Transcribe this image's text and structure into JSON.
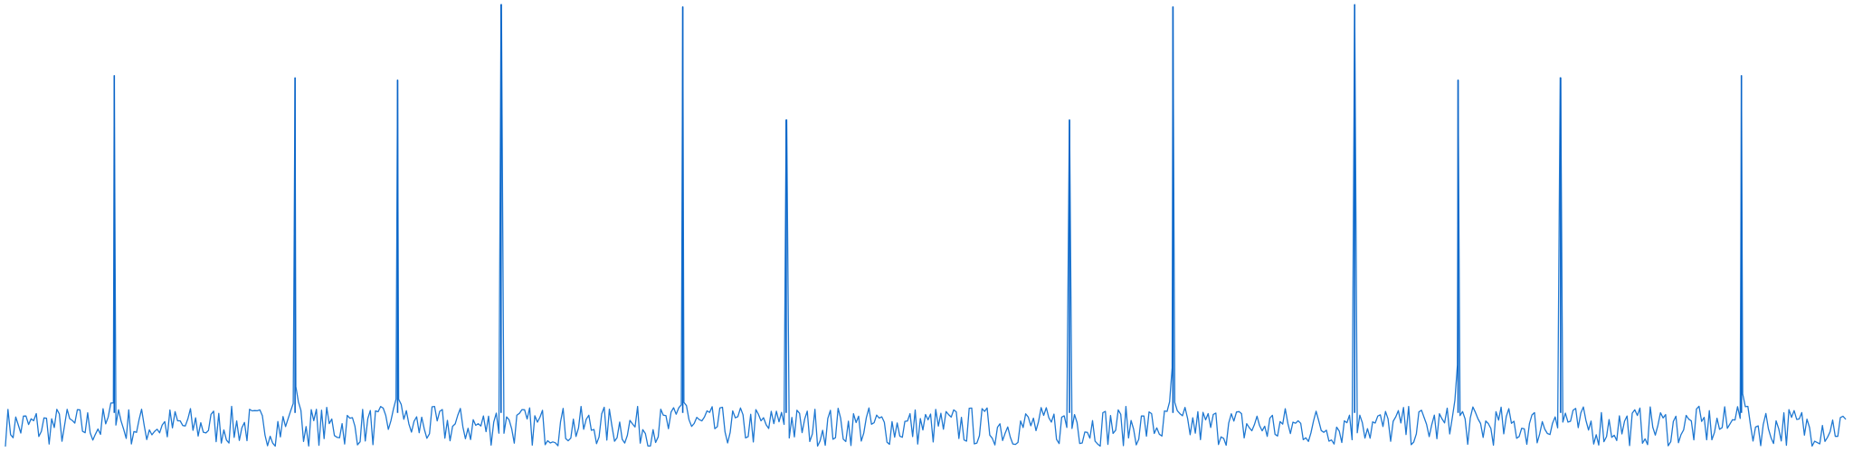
{
  "chart_data": {
    "type": "line",
    "title": "",
    "xlabel": "",
    "ylabel": "",
    "grid": false,
    "legend": "none",
    "axes_visible": false,
    "xlim": [
      0,
      2048
    ],
    "ylim": [
      0,
      1.0
    ],
    "line_color": "#1f78d1",
    "peak_color": "#0a64c8",
    "noise": {
      "baseline": 0.05,
      "amplitude": 0.045,
      "samples_per_unit": 0.35,
      "seed": 7
    },
    "peaks": [
      {
        "x": 121,
        "y": 0.84
      },
      {
        "x": 322,
        "y": 0.835
      },
      {
        "x": 436,
        "y": 0.83
      },
      {
        "x": 551,
        "y": 1.0
      },
      {
        "x": 753,
        "y": 0.995
      },
      {
        "x": 868,
        "y": 0.74
      },
      {
        "x": 1183,
        "y": 0.74
      },
      {
        "x": 1298,
        "y": 0.995
      },
      {
        "x": 1500,
        "y": 1.0
      },
      {
        "x": 1615,
        "y": 0.83
      },
      {
        "x": 1729,
        "y": 0.835
      },
      {
        "x": 1930,
        "y": 0.84
      }
    ]
  }
}
